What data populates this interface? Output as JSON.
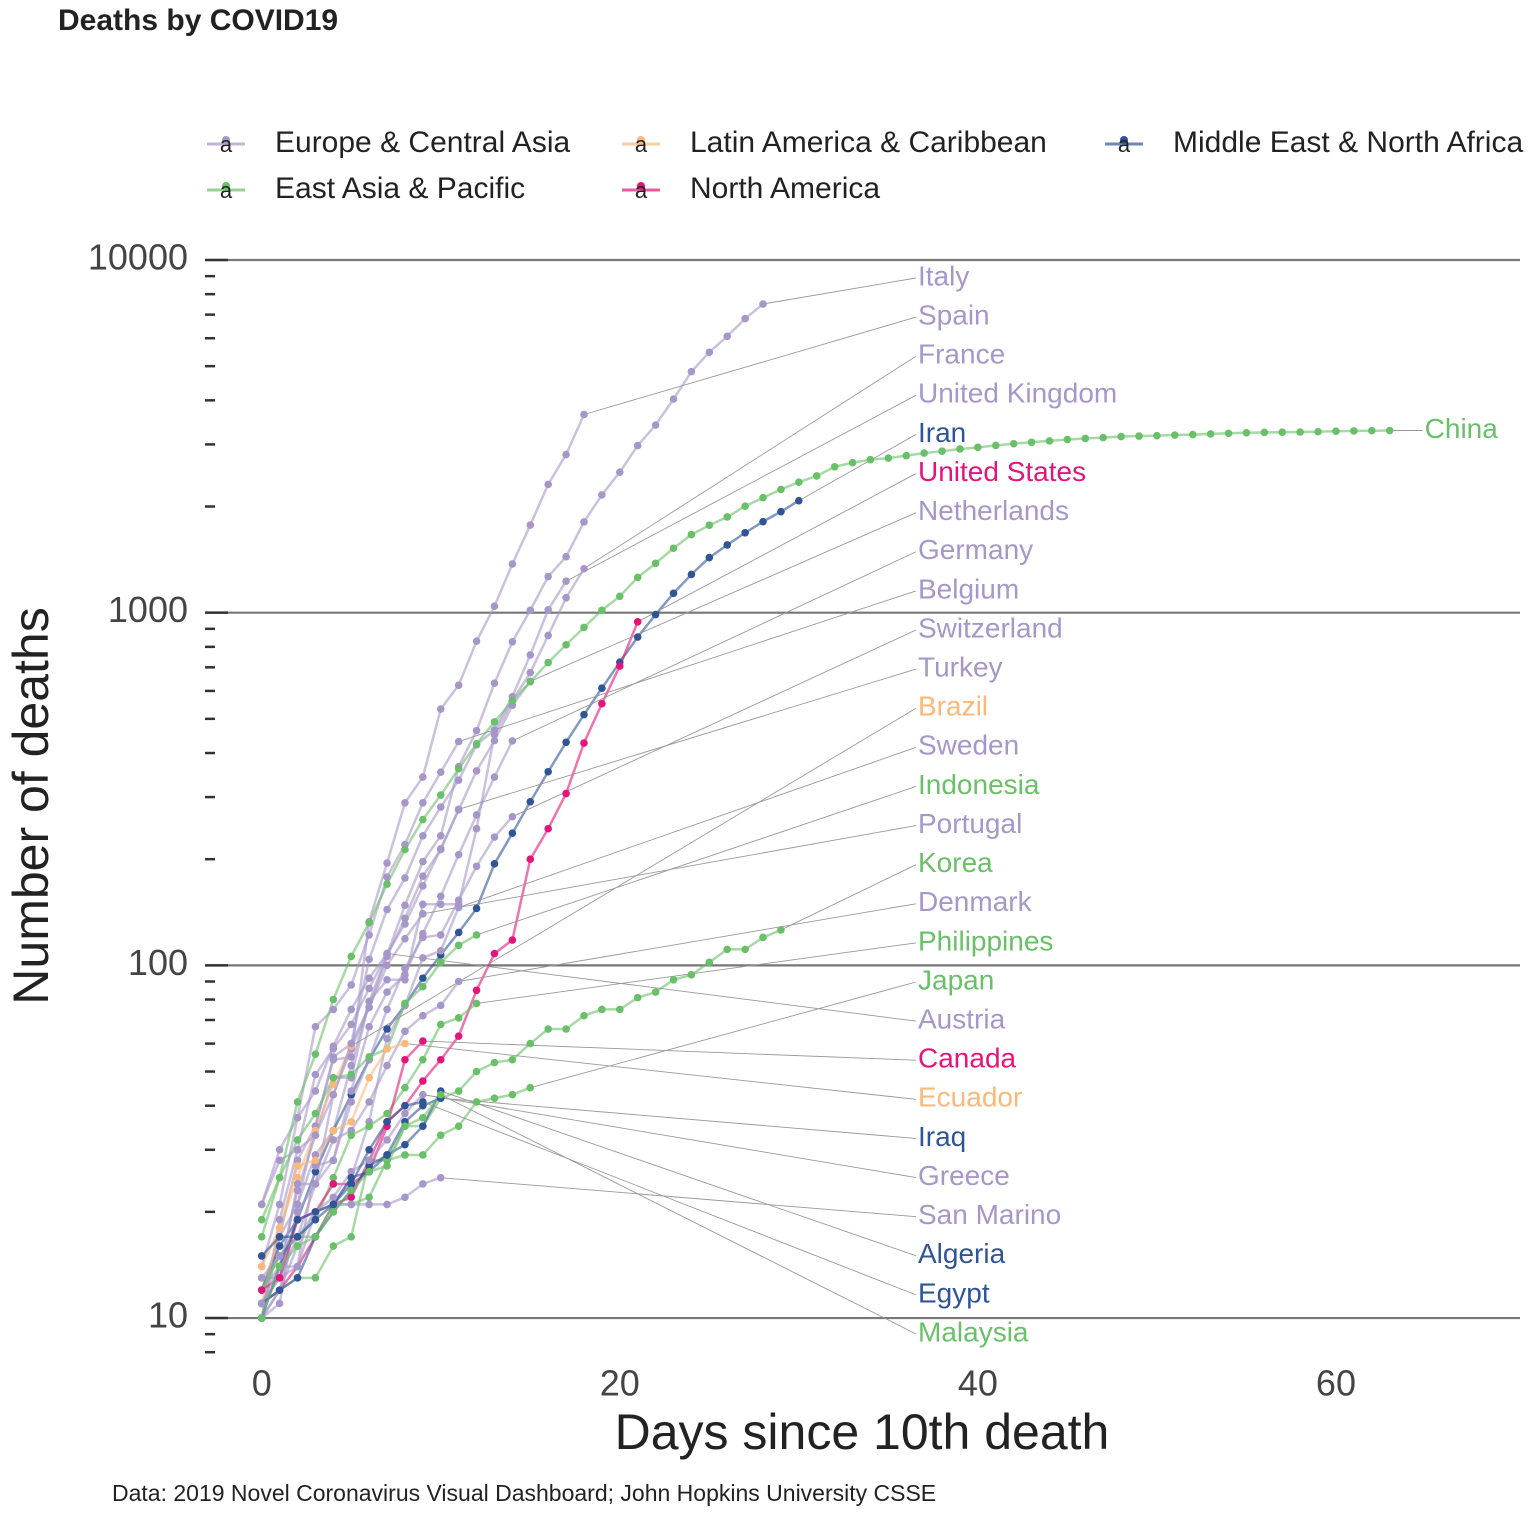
{
  "chart_data": {
    "type": "line",
    "title": "Deaths by COVID19",
    "x_label": "Days since 10th death",
    "y_label": "Number of deaths",
    "caption": "Data: 2019 Novel Coronavirus Visual Dashboard; John Hopkins University CSSE",
    "log_y": true,
    "grid": true,
    "legend_position": "top",
    "legend": [
      {
        "name": "Europe & Central Asia",
        "color": "#a797c9"
      },
      {
        "name": "Latin America & Caribbean",
        "color": "#f9b97a"
      },
      {
        "name": "Middle East & North Africa",
        "color": "#2f5597"
      },
      {
        "name": "East Asia & Pacific",
        "color": "#6abf69"
      },
      {
        "name": "North America",
        "color": "#e3157a"
      }
    ],
    "xlim": [
      -3,
      70
    ],
    "xticks": [
      0,
      20,
      40,
      60
    ],
    "ylim": [
      7.5,
      10000
    ],
    "yticks": [
      10,
      100,
      1000,
      10000
    ],
    "yminor_ticks": [
      8,
      9,
      20,
      30,
      40,
      50,
      60,
      70,
      80,
      90,
      200,
      300,
      400,
      500,
      600,
      700,
      800,
      900,
      2000,
      3000,
      4000,
      5000,
      6000,
      7000,
      8000,
      9000
    ],
    "series": [
      {
        "name": "Italy",
        "color": "#a797c9",
        "values": [
          12,
          17,
          21,
          29,
          34,
          52,
          79,
          107,
          148,
          197,
          233,
          366,
          463,
          631,
          827,
          1016,
          1266,
          1441,
          1809,
          2158,
          2503,
          2978,
          3405,
          4032,
          4825,
          5476,
          6077,
          6820,
          7503
        ]
      },
      {
        "name": "Spain",
        "color": "#a797c9",
        "values": [
          10,
          17,
          28,
          35,
          54,
          55,
          133,
          195,
          289,
          342,
          533,
          623,
          830,
          1043,
          1375,
          1772,
          2311,
          2808,
          3647
        ]
      },
      {
        "name": "France",
        "color": "#a797c9",
        "values": [
          10,
          19,
          30,
          33,
          48,
          48,
          79,
          91,
          91,
          149,
          149,
          149,
          244,
          451,
          563,
          676,
          862,
          1102,
          1333
        ]
      },
      {
        "name": "United Kingdom",
        "color": "#a797c9",
        "values": [
          10,
          11,
          21,
          35,
          55,
          60,
          104,
          144,
          177,
          233,
          281,
          335,
          422,
          465,
          578,
          759,
          1019,
          1228
        ]
      },
      {
        "name": "Iran",
        "color": "#2f5597",
        "values": [
          12,
          16,
          19,
          26,
          34,
          43,
          54,
          66,
          77,
          92,
          107,
          124,
          145,
          194,
          237,
          291,
          354,
          429,
          514,
          611,
          724,
          853,
          988,
          1135,
          1284,
          1433,
          1556,
          1685,
          1812,
          1934,
          2077
        ]
      },
      {
        "name": "United States",
        "color": "#e3157a",
        "values": [
          11,
          12,
          14,
          17,
          21,
          22,
          28,
          36,
          40,
          47,
          54,
          63,
          85,
          108,
          118,
          200,
          244,
          307,
          427,
          552,
          706,
          942
        ]
      },
      {
        "name": "Netherlands",
        "color": "#a797c9",
        "values": [
          10,
          12,
          20,
          24,
          43,
          58,
          76,
          106,
          136,
          179,
          213,
          276,
          356,
          434,
          546,
          639
        ]
      },
      {
        "name": "Germany",
        "color": "#a797c9",
        "values": [
          11,
          13,
          17,
          24,
          28,
          44,
          67,
          84,
          94,
          123,
          157,
          206,
          267,
          342,
          433
        ]
      },
      {
        "name": "Belgium",
        "color": "#a797c9",
        "values": [
          14,
          21,
          37,
          67,
          75,
          88,
          122,
          178,
          220,
          289,
          353,
          431
        ]
      },
      {
        "name": "Switzerland",
        "color": "#a797c9",
        "values": [
          11,
          13,
          14,
          27,
          28,
          41,
          54,
          75,
          98,
          120,
          122,
          153,
          191,
          231,
          264
        ]
      },
      {
        "name": "Turkey",
        "color": "#a797c9",
        "values": [
          21,
          30,
          37,
          44,
          59,
          75,
          92,
          108,
          131,
          168,
          214,
          277
        ]
      },
      {
        "name": "Brazil",
        "color": "#f9b97a",
        "values": [
          11,
          18,
          25,
          34,
          46,
          59
        ]
      },
      {
        "name": "Sweden",
        "color": "#a797c9",
        "values": [
          10,
          12,
          16,
          20,
          21,
          25,
          36,
          62,
          77,
          105,
          110,
          146
        ]
      },
      {
        "name": "Indonesia",
        "color": "#6abf69",
        "values": [
          19,
          25,
          32,
          38,
          48,
          49,
          55,
          58,
          78,
          87,
          102,
          114,
          122
        ]
      },
      {
        "name": "Portugal",
        "color": "#a797c9",
        "values": [
          12,
          14,
          23,
          33,
          43,
          60,
          76,
          100,
          119,
          140
        ]
      },
      {
        "name": "Korea",
        "color": "#6abf69",
        "values": [
          11,
          12,
          13,
          13,
          16,
          17,
          28,
          28,
          35,
          35,
          42,
          44,
          50,
          53,
          54,
          60,
          66,
          66,
          72,
          75,
          75,
          81,
          84,
          91,
          94,
          102,
          111,
          111,
          120,
          126
        ]
      },
      {
        "name": "Denmark",
        "color": "#a797c9",
        "values": [
          13,
          13,
          24,
          24,
          32,
          34,
          41,
          52,
          65,
          72,
          77,
          90
        ]
      },
      {
        "name": "Philippines",
        "color": "#6abf69",
        "values": [
          12,
          15,
          17,
          19,
          25,
          33,
          35,
          38,
          45,
          54,
          68,
          71,
          78
        ]
      },
      {
        "name": "Japan",
        "color": "#6abf69",
        "values": [
          12,
          15,
          17,
          17,
          21,
          21,
          22,
          28,
          29,
          29,
          33,
          35,
          41,
          42,
          43,
          45
        ]
      },
      {
        "name": "Austria",
        "color": "#a797c9",
        "values": [
          21,
          28,
          30,
          49,
          58,
          68,
          86,
          108
        ]
      },
      {
        "name": "Canada",
        "color": "#e3157a",
        "values": [
          12,
          13,
          19,
          20,
          24,
          24,
          26,
          35,
          54,
          61
        ]
      },
      {
        "name": "Ecuador",
        "color": "#f9b97a",
        "values": [
          14,
          18,
          27,
          28,
          34,
          36,
          48,
          58,
          60
        ]
      },
      {
        "name": "Iraq",
        "color": "#2f5597",
        "values": [
          11,
          12,
          13,
          17,
          20,
          23,
          27,
          29,
          36,
          40,
          42
        ]
      },
      {
        "name": "Greece",
        "color": "#a797c9",
        "values": [
          13,
          15,
          17,
          20,
          22,
          26,
          28,
          32,
          38,
          43
        ]
      },
      {
        "name": "San Marino",
        "color": "#a797c9",
        "values": [
          11,
          14,
          14,
          20,
          21,
          21,
          21,
          21,
          22,
          24,
          25
        ]
      },
      {
        "name": "Algeria",
        "color": "#2f5597",
        "values": [
          15,
          17,
          17,
          19,
          21,
          25,
          26,
          29,
          31,
          35,
          44
        ]
      },
      {
        "name": "Egypt",
        "color": "#2f5597",
        "values": [
          10,
          14,
          19,
          20,
          21,
          24,
          30,
          36,
          40,
          41
        ]
      },
      {
        "name": "Malaysia",
        "color": "#6abf69",
        "values": [
          10,
          14,
          16,
          17,
          20,
          23,
          26,
          27,
          35,
          37,
          43
        ]
      },
      {
        "name": "China",
        "color": "#6abf69",
        "values": [
          17,
          25,
          41,
          56,
          80,
          106,
          132,
          170,
          213,
          259,
          304,
          361,
          425,
          490,
          563,
          637,
          722,
          811,
          908,
          1016,
          1113,
          1259,
          1380,
          1523,
          1665,
          1770,
          1868,
          2004,
          2118,
          2236,
          2345,
          2442,
          2592,
          2663,
          2715,
          2744,
          2788,
          2835,
          2870,
          2912,
          2943,
          2981,
          3013,
          3042,
          3070,
          3097,
          3119,
          3136,
          3158,
          3169,
          3176,
          3189,
          3199,
          3213,
          3226,
          3237,
          3245,
          3249,
          3253,
          3261,
          3270,
          3277,
          3281,
          3285
        ]
      }
    ]
  }
}
